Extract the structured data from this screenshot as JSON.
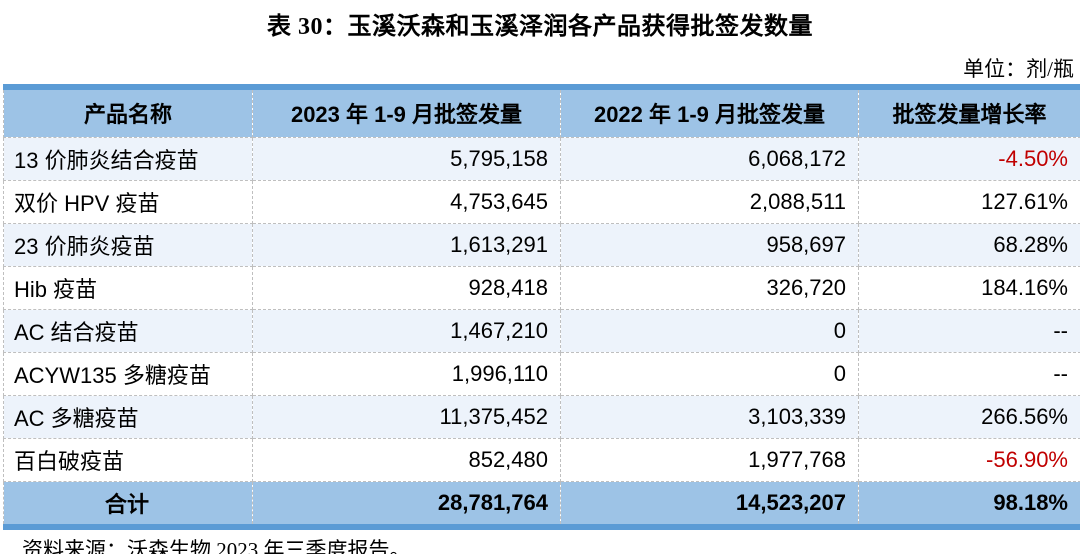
{
  "title": "表 30：玉溪沃森和玉溪泽润各产品获得批签发数量",
  "unit_label": "单位：剂/瓶",
  "source_note": "资料来源：沃森生物 2023 年三季度报告。",
  "colors": {
    "accent_border": "#5B9BD5",
    "header_fill": "#9DC3E6",
    "row_alt_fill": "#EDF3FB",
    "negative_text": "#C00000",
    "dashed_grid": "#bfbfbf"
  },
  "table": {
    "headers": [
      "产品名称",
      "2023 年 1-9 月批签发量",
      "2022 年 1-9 月批签发量",
      "批签发量增长率"
    ],
    "rows": [
      {
        "name": "13 价肺炎结合疫苗",
        "y2023": "5,795,158",
        "y2022": "6,068,172",
        "growth": "-4.50%"
      },
      {
        "name": "双价 HPV 疫苗",
        "y2023": "4,753,645",
        "y2022": "2,088,511",
        "growth": "127.61%"
      },
      {
        "name": "23 价肺炎疫苗",
        "y2023": "1,613,291",
        "y2022": "958,697",
        "growth": "68.28%"
      },
      {
        "name": "Hib 疫苗",
        "y2023": "928,418",
        "y2022": "326,720",
        "growth": "184.16%"
      },
      {
        "name": "AC 结合疫苗",
        "y2023": "1,467,210",
        "y2022": "0",
        "growth": "--"
      },
      {
        "name": "ACYW135 多糖疫苗",
        "y2023": "1,996,110",
        "y2022": "0",
        "growth": "--"
      },
      {
        "name": "AC 多糖疫苗",
        "y2023": "11,375,452",
        "y2022": "3,103,339",
        "growth": "266.56%"
      },
      {
        "name": "百白破疫苗",
        "y2023": "852,480",
        "y2022": "1,977,768",
        "growth": "-56.90%"
      }
    ],
    "total": {
      "name": "合计",
      "y2023": "28,781,764",
      "y2022": "14,523,207",
      "growth": "98.18%"
    }
  }
}
